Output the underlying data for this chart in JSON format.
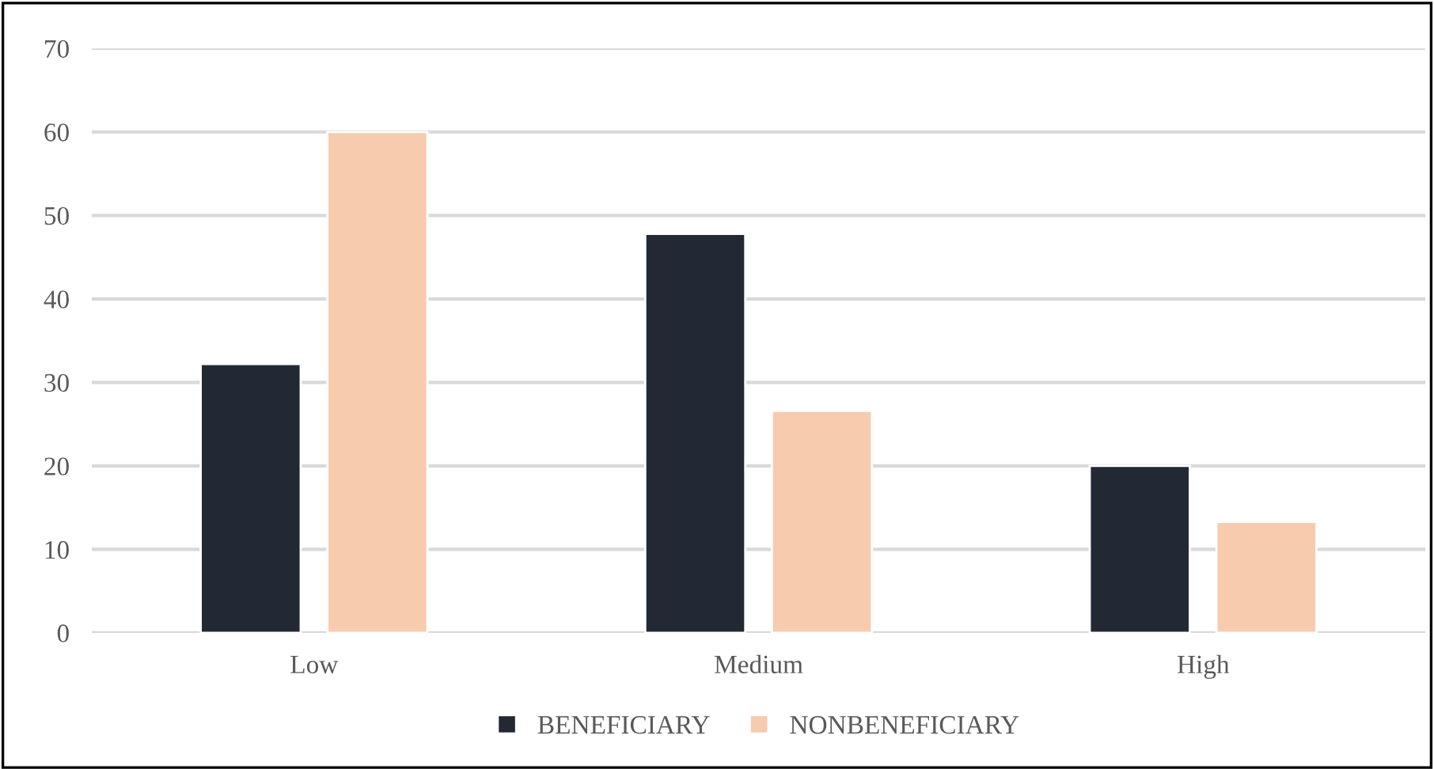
{
  "chart_data": {
    "type": "bar",
    "categories": [
      "Low",
      "Medium",
      "High"
    ],
    "series": [
      {
        "name": "BENEFICIARY",
        "color": "#232934",
        "values": [
          32.2,
          47.8,
          20.0
        ]
      },
      {
        "name": "NONBENEFICIARY",
        "color": "#f7cbad",
        "values": [
          60.0,
          26.6,
          13.3
        ]
      }
    ],
    "ylim": [
      0,
      70
    ],
    "yticks": [
      0,
      10,
      20,
      30,
      40,
      50,
      60,
      70
    ],
    "grid": "y",
    "legend": "bottom"
  }
}
